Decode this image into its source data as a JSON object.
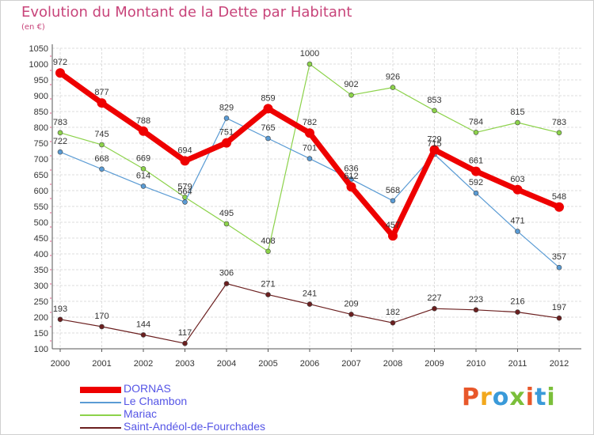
{
  "header": {
    "title": "Evolution du Montant de la Dette par Habitant",
    "unit": "(en €)"
  },
  "logo": {
    "text": "Proxiti",
    "colors": [
      "#e8572a",
      "#f2a81d",
      "#3a9ad9",
      "#7bbf3a",
      "#e8572a",
      "#3a9ad9",
      "#7bbf3a"
    ]
  },
  "chart_data": {
    "type": "line",
    "title": "Evolution du Montant de la Dette par Habitant",
    "subtitle": "(en €)",
    "x": [
      "2000",
      "2001",
      "2002",
      "2003",
      "2004",
      "2005",
      "2006",
      "2007",
      "2008",
      "2009",
      "2010",
      "2011",
      "2012"
    ],
    "yticks": [
      100,
      150,
      200,
      250,
      300,
      350,
      400,
      450,
      500,
      550,
      600,
      650,
      700,
      750,
      800,
      850,
      900,
      950,
      1000,
      1050
    ],
    "ylim": [
      100,
      1050
    ],
    "grid": true,
    "legend_position": "bottom-left",
    "series": [
      {
        "name": "DORNAS",
        "color": "#ee0000",
        "values": [
          972,
          877,
          788,
          694,
          751,
          859,
          782,
          612,
          457,
          729,
          661,
          603,
          548
        ],
        "labels": [
          "972",
          "877",
          "788",
          "694",
          "751",
          "859",
          "782",
          "612",
          "457",
          "729",
          "661",
          "603",
          "548"
        ]
      },
      {
        "name": "Le Chambon",
        "color": "#5a9bd4",
        "values": [
          722,
          668,
          614,
          564,
          829,
          765,
          701,
          636,
          568,
          715,
          592,
          471,
          357
        ],
        "labels": [
          "722",
          "668",
          "614",
          "564",
          "829",
          "765",
          "701",
          "636",
          "568",
          "715",
          "592",
          "471",
          "357"
        ]
      },
      {
        "name": "Mariac",
        "color": "#8cd24a",
        "values": [
          783,
          745,
          669,
          579,
          495,
          408,
          1000,
          902,
          926,
          853,
          784,
          815,
          783
        ],
        "labels": [
          "783",
          "745",
          "669",
          "579",
          "495",
          "408",
          "1000",
          "902",
          "926",
          "853",
          "784",
          "815",
          "783"
        ]
      },
      {
        "name": "Saint-Andéol-de-Fourchades",
        "color": "#6b1f1f",
        "values": [
          193,
          170,
          144,
          117,
          306,
          271,
          241,
          209,
          182,
          227,
          223,
          216,
          197
        ],
        "labels": [
          "193",
          "170",
          "144",
          "117",
          "306",
          "271",
          "241",
          "209",
          "182",
          "227",
          "223",
          "216",
          "197"
        ]
      }
    ]
  }
}
